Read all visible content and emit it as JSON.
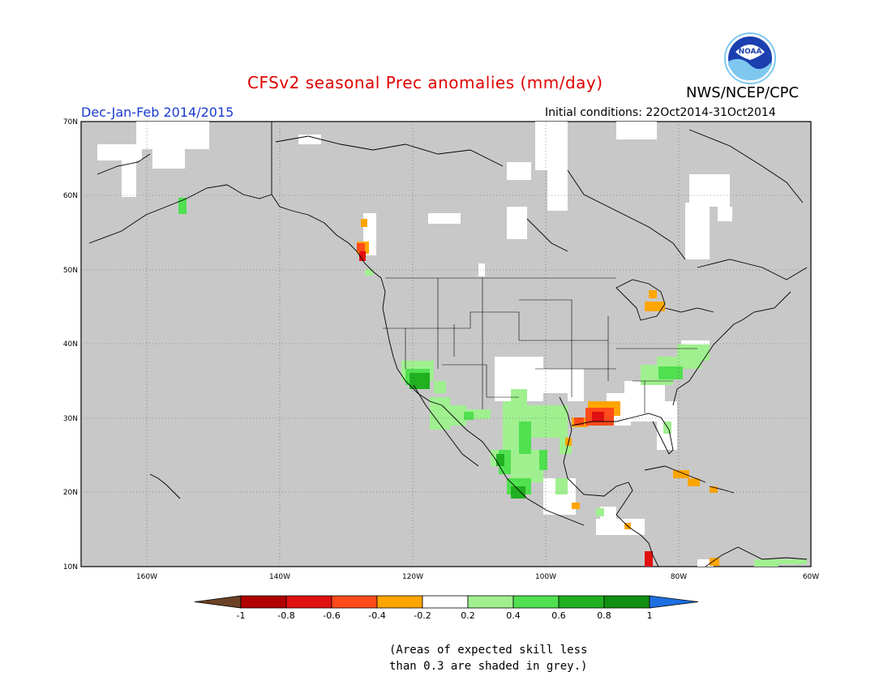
{
  "title": "CFSv2 seasonal Prec anomalies (mm/day)",
  "agency": "NWS/NCEP/CPC",
  "logo_text": "NOAA",
  "period": "Dec-Jan-Feb 2014/2015",
  "initial_conditions": "Initial conditions: 22Oct2014-31Oct2014",
  "lat_labels": [
    "70N",
    "60N",
    "50N",
    "40N",
    "30N",
    "20N",
    "10N"
  ],
  "lon_labels": [
    "160W",
    "140W",
    "120W",
    "100W",
    "80W",
    "60W"
  ],
  "colorbar": {
    "ticks": [
      "-1",
      "-0.8",
      "-0.6",
      "-0.4",
      "-0.2",
      "0.2",
      "0.4",
      "0.6",
      "0.8",
      "1"
    ],
    "colors": [
      "#6b4226",
      "#b00000",
      "#e01010",
      "#ff4a1a",
      "#ffa500",
      "#ffffff",
      "#a0f090",
      "#50e050",
      "#20b020",
      "#109010",
      "#1e6fe0"
    ]
  },
  "footnote_line1": "(Areas of expected skill less",
  "footnote_line2": "than 0.3 are shaded in grey.)",
  "colors": {
    "grey_mask": "#c8c8c8",
    "title_red": "#e00000",
    "period_blue": "#1a3cd0"
  }
}
